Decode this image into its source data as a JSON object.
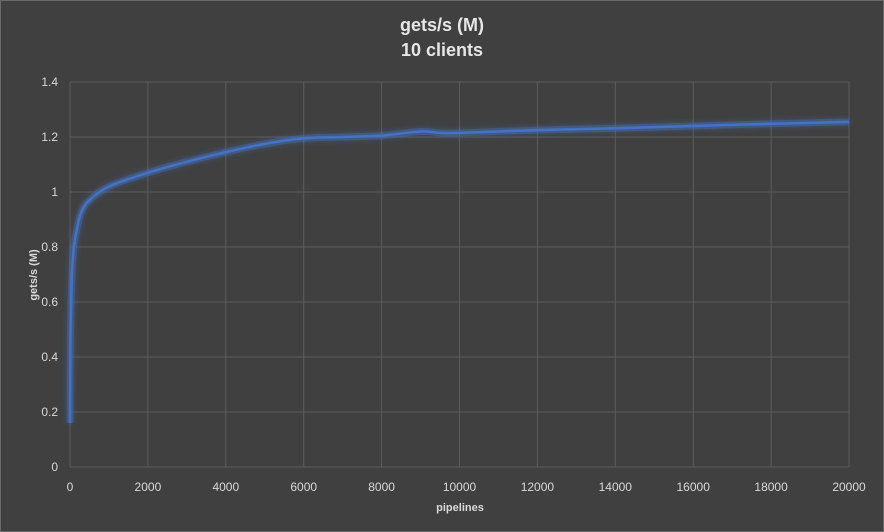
{
  "chart_data": {
    "type": "line",
    "title": "gets/s (M)",
    "subtitle": "10 clients",
    "xlabel": "pipelines",
    "ylabel": "gets/s (M)",
    "xlim": [
      0,
      20000
    ],
    "ylim": [
      0,
      1.4
    ],
    "x_ticks": [
      0,
      2000,
      4000,
      6000,
      8000,
      10000,
      12000,
      14000,
      16000,
      18000,
      20000
    ],
    "y_ticks": [
      0,
      0.2,
      0.4,
      0.6,
      0.8,
      1,
      1.2,
      1.4
    ],
    "x_tick_labels": [
      "0",
      "2000",
      "4000",
      "6000",
      "8000",
      "10000",
      "12000",
      "14000",
      "16000",
      "18000",
      "20000"
    ],
    "y_tick_labels": [
      "0",
      "0.2",
      "0.4",
      "0.6",
      "0.8",
      "1",
      "1.2",
      "1.4"
    ],
    "grid": true,
    "legend": "none",
    "series": [
      {
        "color": "#4472c4",
        "x": [
          1,
          10,
          50,
          100,
          200,
          300,
          500,
          1000,
          2000,
          3000,
          4000,
          5000,
          6000,
          7000,
          8000,
          9000,
          9500,
          10000,
          12000,
          14000,
          16000,
          18000,
          20000
        ],
        "y": [
          0.16,
          0.45,
          0.7,
          0.8,
          0.88,
          0.93,
          0.97,
          1.02,
          1.07,
          1.11,
          1.145,
          1.175,
          1.195,
          1.2,
          1.205,
          1.22,
          1.215,
          1.215,
          1.225,
          1.232,
          1.24,
          1.248,
          1.255
        ]
      }
    ]
  }
}
